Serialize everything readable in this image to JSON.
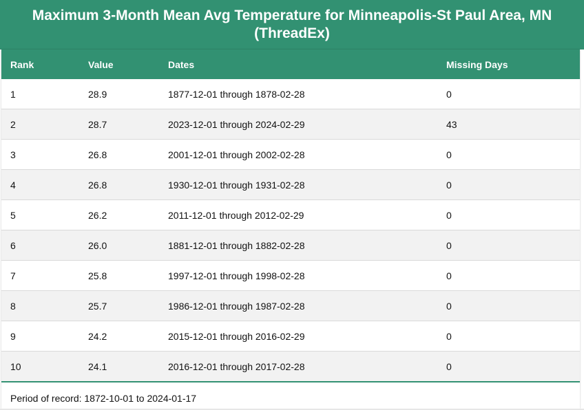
{
  "title": {
    "line1": "Maximum 3-Month Mean Avg Temperature for Minneapolis-St Paul Area, MN",
    "line2": "(ThreadEx)"
  },
  "table": {
    "headers": {
      "rank": "Rank",
      "value": "Value",
      "dates": "Dates",
      "missing": "Missing Days"
    },
    "rows": [
      {
        "rank": "1",
        "value": "28.9",
        "dates": "1877-12-01 through 1878-02-28",
        "missing": "0"
      },
      {
        "rank": "2",
        "value": "28.7",
        "dates": "2023-12-01 through 2024-02-29",
        "missing": "43"
      },
      {
        "rank": "3",
        "value": "26.8",
        "dates": "2001-12-01 through 2002-02-28",
        "missing": "0"
      },
      {
        "rank": "4",
        "value": "26.8",
        "dates": "1930-12-01 through 1931-02-28",
        "missing": "0"
      },
      {
        "rank": "5",
        "value": "26.2",
        "dates": "2011-12-01 through 2012-02-29",
        "missing": "0"
      },
      {
        "rank": "6",
        "value": "26.0",
        "dates": "1881-12-01 through 1882-02-28",
        "missing": "0"
      },
      {
        "rank": "7",
        "value": "25.8",
        "dates": "1997-12-01 through 1998-02-28",
        "missing": "0"
      },
      {
        "rank": "8",
        "value": "25.7",
        "dates": "1986-12-01 through 1987-02-28",
        "missing": "0"
      },
      {
        "rank": "9",
        "value": "24.2",
        "dates": "2015-12-01 through 2016-02-29",
        "missing": "0"
      },
      {
        "rank": "10",
        "value": "24.1",
        "dates": "2016-12-01 through 2017-02-28",
        "missing": "0"
      }
    ]
  },
  "footer": {
    "period_text": "Period of record: 1872-10-01 to 2024-01-17"
  },
  "colors": {
    "accent": "#329172",
    "row_alt": "#f2f2f2"
  }
}
